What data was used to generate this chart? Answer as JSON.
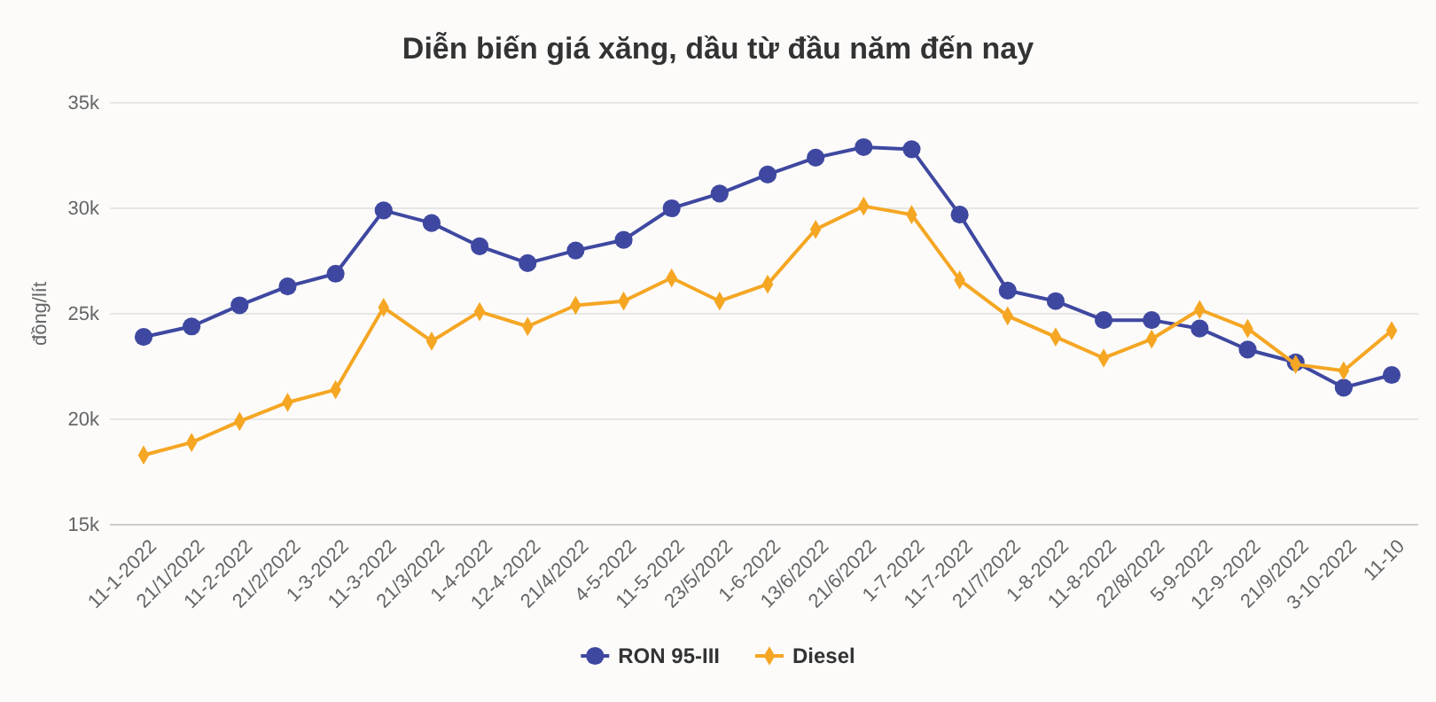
{
  "chart_data": {
    "type": "line",
    "title": "Diễn biến giá xăng, dầu từ đầu năm đến nay",
    "ylabel": "đồng/lít",
    "categories": [
      "11-1-2022",
      "21/1/2022",
      "11-2-2022",
      "21/2/2022",
      "1-3-2022",
      "11-3-2022",
      "21/3/2022",
      "1-4-2022",
      "12-4-2022",
      "21/4/2022",
      "4-5-2022",
      "11-5-2022",
      "23/5/2022",
      "1-6-2022",
      "13/6/2022",
      "21/6/2022",
      "1-7-2022",
      "11-7-2022",
      "21/7/2022",
      "1-8-2022",
      "11-8-2022",
      "22/8/2022",
      "5-9-2022",
      "12-9-2022",
      "21/9/2022",
      "3-10-2022",
      "11-10"
    ],
    "series": [
      {
        "name": "RON 95-III",
        "color": "#3f48a0",
        "marker": "circle",
        "values": [
          23900,
          24400,
          25400,
          26300,
          26900,
          29900,
          29300,
          28200,
          27400,
          28000,
          28500,
          30000,
          30700,
          31600,
          32400,
          32900,
          32800,
          29700,
          26100,
          25600,
          24700,
          24700,
          24300,
          23300,
          22700,
          21500,
          22100
        ]
      },
      {
        "name": "Diesel",
        "color": "#f5a623",
        "marker": "diamond",
        "values": [
          18300,
          18900,
          19900,
          20800,
          21400,
          25300,
          23700,
          25100,
          24400,
          25400,
          25600,
          26700,
          25600,
          26400,
          29000,
          30100,
          29700,
          26600,
          24900,
          23900,
          22900,
          23800,
          25200,
          24300,
          22600,
          22300,
          24200
        ]
      }
    ],
    "ylim": [
      15000,
      35000
    ],
    "yticks": [
      {
        "value": 15000,
        "label": "15k"
      },
      {
        "value": 20000,
        "label": "20k"
      },
      {
        "value": 25000,
        "label": "25k"
      },
      {
        "value": 30000,
        "label": "30k"
      },
      {
        "value": 35000,
        "label": "35k"
      }
    ],
    "grid": "y",
    "legend": "bottom",
    "line_style": "solid"
  }
}
